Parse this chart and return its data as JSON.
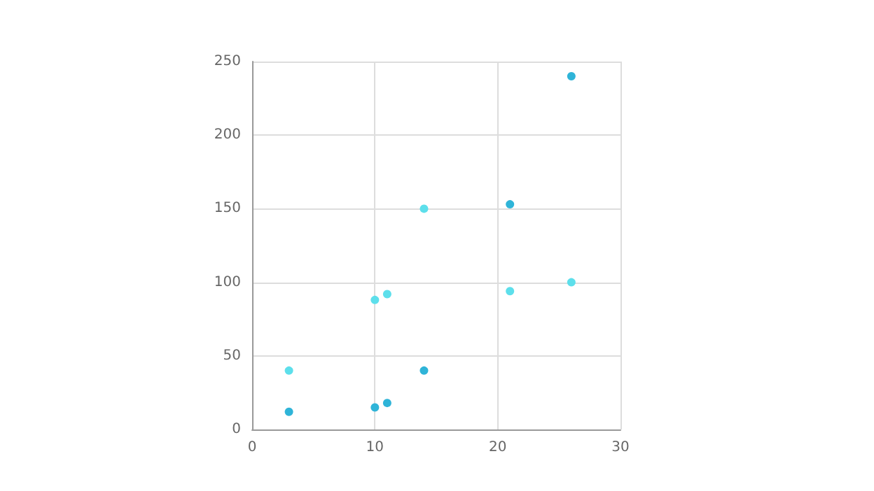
{
  "chart_data": {
    "type": "scatter",
    "x": [
      3,
      10,
      11,
      14,
      21,
      26
    ],
    "series": [
      {
        "color": "#5ddfeb",
        "values": [
          40,
          88,
          92,
          150,
          94,
          100
        ]
      },
      {
        "color": "#2fb4d8",
        "values": [
          12,
          15,
          18,
          40,
          153,
          240
        ]
      }
    ],
    "xlim": [
      0,
      30
    ],
    "xticks": [
      0,
      10,
      20,
      30
    ],
    "ylim": [
      0,
      250
    ],
    "yticks": [
      0,
      50,
      100,
      150,
      200,
      250
    ],
    "grid": true,
    "marker": "circle"
  }
}
